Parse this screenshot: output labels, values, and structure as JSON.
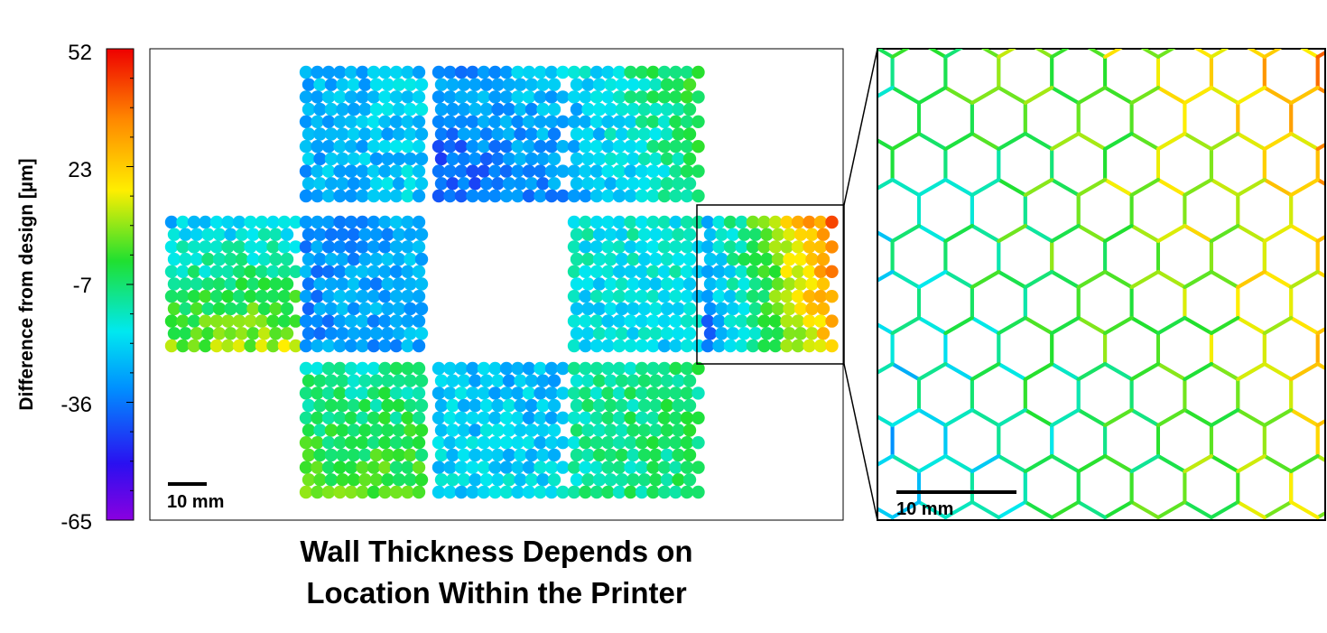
{
  "colorbar": {
    "title": "Difference from design [µm]",
    "ticks": [
      "52",
      "23",
      "-7",
      "-36",
      "-65"
    ],
    "min": -65,
    "max": 52,
    "colormap": "jet"
  },
  "main_map": {
    "scale_label": "10 mm"
  },
  "zoom_panel": {
    "scale_label": "10 mm"
  },
  "caption": {
    "line1": "Wall Thickness Depends on",
    "line2": "Location Within the Printer"
  }
}
